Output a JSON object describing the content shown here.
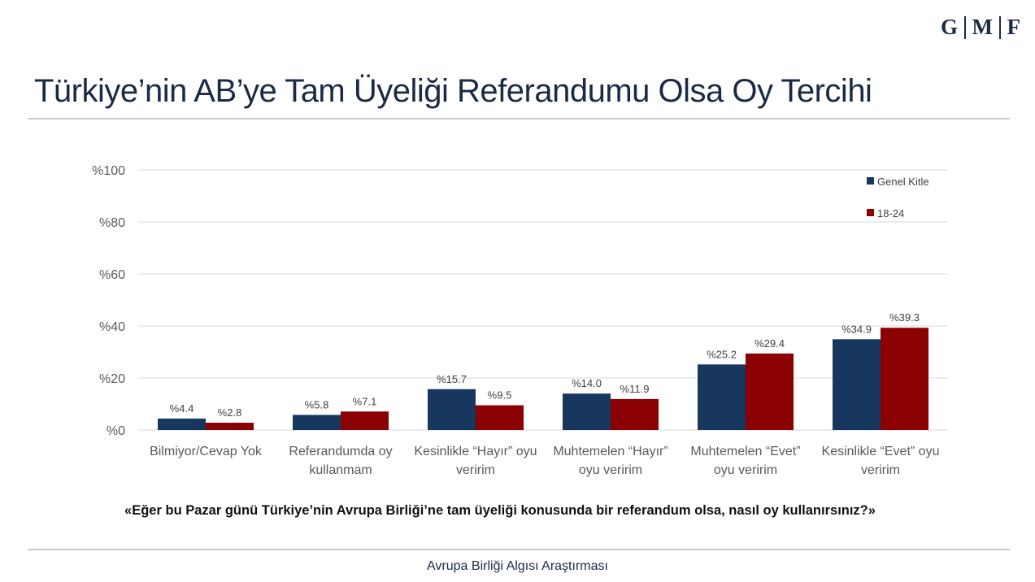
{
  "logo": {
    "letters": [
      "G",
      "M",
      "F"
    ]
  },
  "title": "Türkiye’nin AB’ye Tam Üyeliği Referandumu Olsa Oy Tercihi",
  "question": "«Eğer bu Pazar günü Türkiye’nin Avrupa Birliği’ne tam üyeliği konusunda  bir referandum olsa, nasıl oy kullanırsınız?»",
  "footer": "Avrupa Birliği Algısı Araştırması",
  "colors": {
    "genel": "#17375e",
    "youth": "#8b0000",
    "grid": "#d9d9d9",
    "axis_text": "#595959"
  },
  "chart_data": {
    "type": "bar",
    "categories": [
      [
        "Bilmiyor/Cevap Yok"
      ],
      [
        "Referandumda oy",
        "kullanmam"
      ],
      [
        "Kesinlikle “Hayır” oyu",
        "veririm"
      ],
      [
        "Muhtemelen  “Hayır”",
        "oyu veririm"
      ],
      [
        "Muhtemelen “Evet”",
        "oyu veririm"
      ],
      [
        "Kesinlikle “Evet” oyu",
        "veririm"
      ]
    ],
    "series": [
      {
        "name": "Genel Kitle",
        "values": [
          4.4,
          5.8,
          15.7,
          14.0,
          25.2,
          34.9
        ],
        "labels": [
          "%4.4",
          "%5.8",
          "%15.7",
          "%14.0",
          "%25.2",
          "%34.9"
        ]
      },
      {
        "name": "18-24",
        "values": [
          2.8,
          7.1,
          9.5,
          11.9,
          29.4,
          39.3
        ],
        "labels": [
          "%2.8",
          "%7.1",
          "%9.5",
          "%11.9",
          "%29.4",
          "%39.3"
        ]
      }
    ],
    "yticks": [
      "%0",
      "%20",
      "%40",
      "%60",
      "%80",
      "%100"
    ],
    "ylim": [
      0,
      100
    ],
    "grid": true,
    "legend": "top-right"
  }
}
